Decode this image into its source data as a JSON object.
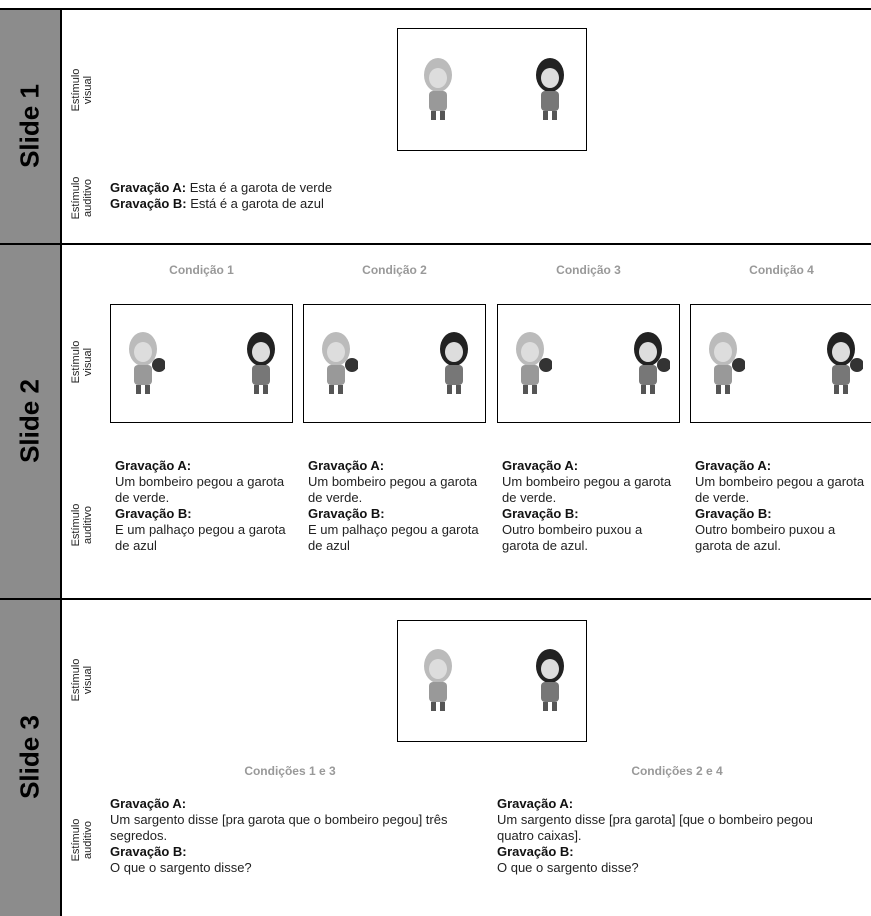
{
  "slides": [
    {
      "label": "Slide 1",
      "visual_label": "Estímulo visual",
      "auditory_label": "Estímulo auditivo",
      "recordings": [
        {
          "label": "Gravação A:",
          "text": "Esta é a garota de verde"
        },
        {
          "label": "Gravação B:",
          "text": "Está é a garota de azul"
        }
      ]
    },
    {
      "label": "Slide 2",
      "visual_label": "Estímulo visual",
      "auditory_label": "Estímulo auditivo",
      "conditions": [
        {
          "title": "Condição 1",
          "recordings": [
            {
              "label": "Gravação A:",
              "text": "Um bombeiro pegou a garota de verde."
            },
            {
              "label": "Gravação B:",
              "text": "E um palhaço pegou a garota de azul"
            }
          ]
        },
        {
          "title": "Condição 2",
          "recordings": [
            {
              "label": "Gravação A:",
              "text": "Um bombeiro pegou a garota de verde."
            },
            {
              "label": "Gravação B:",
              "text": "E um palhaço pegou a garota de azul"
            }
          ]
        },
        {
          "title": "Condição 3",
          "recordings": [
            {
              "label": "Gravação A:",
              "text": "Um bombeiro pegou a garota de verde."
            },
            {
              "label": "Gravação B:",
              "text": "Outro bombeiro puxou a garota de azul."
            }
          ]
        },
        {
          "title": "Condição 4",
          "recordings": [
            {
              "label": "Gravação A:",
              "text": "Um bombeiro pegou a garota de verde."
            },
            {
              "label": "Gravação B:",
              "text": "Outro bombeiro puxou a garota de azul."
            }
          ]
        }
      ]
    },
    {
      "label": "Slide 3",
      "visual_label": "Estímulo visual",
      "auditory_label": "Estímulo auditivo",
      "conditions": [
        {
          "title": "Condições 1 e 3",
          "recordings": [
            {
              "label": "Gravação A:",
              "text": "Um sargento disse [pra garota que o bombeiro pegou] três segredos."
            },
            {
              "label": "Gravação B:",
              "text": "O que o sargento disse?"
            }
          ]
        },
        {
          "title": "Condições 2 e 4",
          "recordings": [
            {
              "label": "Gravação A:",
              "text": "Um sargento disse [pra garota] [que o bombeiro pegou quatro caixas]."
            },
            {
              "label": "Gravação B:",
              "text": "O que o sargento disse?"
            }
          ]
        }
      ]
    }
  ]
}
